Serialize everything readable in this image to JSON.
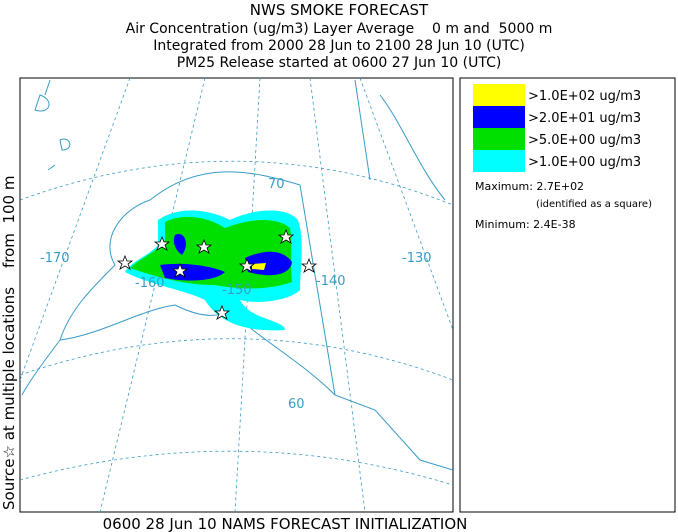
{
  "header": {
    "title": "NWS SMOKE FORECAST",
    "lines": [
      "Air Concentration (ug/m3) Layer Average    0 m and  5000 m",
      "Integrated from 2000 28 Jun to 2100 28 Jun 10 (UTC)",
      "PM25 Release started at 0600 27 Jun 10 (UTC)"
    ]
  },
  "source_label": "Source☆ at multiple locations    from  100 m",
  "footer": "0600 28 Jun 10 NAMS FORECAST INITIALIZATION",
  "map": {
    "longitude_labels": [
      "-170",
      "-160",
      "-150",
      "-140",
      "-130"
    ],
    "latitude_labels": [
      "70",
      "60"
    ]
  },
  "legend": {
    "entries": [
      {
        "label": ">1.0E+02 ug/m3",
        "color": "#ffff00"
      },
      {
        "label": ">2.0E+01 ug/m3",
        "color": "#0000ff"
      },
      {
        "label": ">5.0E+00 ug/m3",
        "color": "#00e000"
      },
      {
        "label": ">1.0E+00 ug/m3",
        "color": "#00ffff"
      }
    ],
    "maximum": "Maximum: 2.7E+02",
    "maximum_note": "(identified as a square)",
    "minimum": "Minimum: 2.4E-38"
  }
}
